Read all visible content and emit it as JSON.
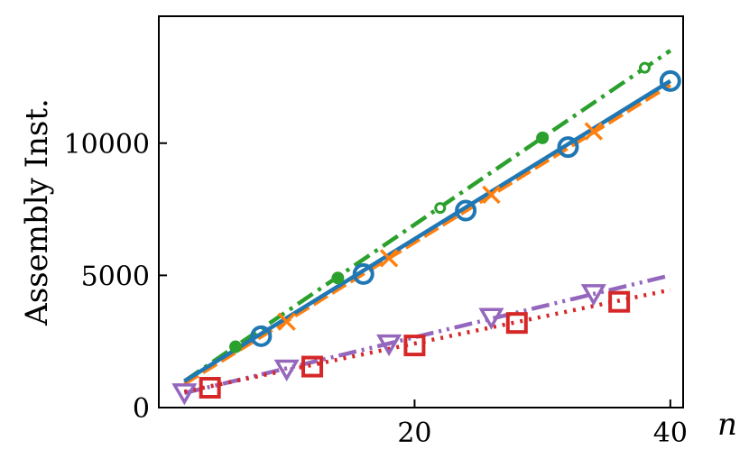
{
  "chart_data": {
    "type": "line",
    "xlabel": "n",
    "ylabel": "Assembly Inst.",
    "xlim": [
      0,
      41
    ],
    "ylim": [
      0,
      14800
    ],
    "xticks": [
      20,
      40
    ],
    "xtick_labels": [
      "20",
      "40"
    ],
    "yticks": [
      0,
      5000,
      10000
    ],
    "ytick_labels": [
      "0",
      "5000",
      "10000"
    ],
    "grid": false,
    "legend": "none",
    "series": [
      {
        "color": "#1f77b4",
        "dash": "solid",
        "marker": "circle",
        "x": [
          2,
          40
        ],
        "y": [
          1000,
          12350
        ],
        "markers": {
          "x": [
            8,
            16,
            24,
            32,
            40
          ],
          "y": [
            2700,
            5050,
            7450,
            9850,
            12350
          ]
        }
      },
      {
        "color": "#ff7f0e",
        "dash": "dashed",
        "marker": "x",
        "x": [
          2,
          40
        ],
        "y": [
          900,
          12200
        ],
        "markers": {
          "x": [
            10,
            18,
            26,
            34
          ],
          "y": [
            3250,
            5650,
            8050,
            10450
          ]
        }
      },
      {
        "color": "#2ca02c",
        "dash": "dashdot",
        "marker": "dot",
        "x": [
          2,
          40
        ],
        "y": [
          1000,
          13500
        ],
        "markers": {
          "x": [
            6,
            14,
            22,
            30,
            38
          ],
          "y": [
            2300,
            4900,
            7550,
            10200,
            12850
          ]
        },
        "hollow_markers_at": [
          22,
          38
        ]
      },
      {
        "color": "#d62728",
        "dash": "dotted",
        "marker": "square",
        "x": [
          2,
          40
        ],
        "y": [
          600,
          4450
        ],
        "markers": {
          "x": [
            4,
            12,
            20,
            28,
            36
          ],
          "y": [
            750,
            1550,
            2350,
            3200,
            4000
          ]
        }
      },
      {
        "color": "#9467bd",
        "dash": "dashdotdot",
        "marker": "triangle-down",
        "x": [
          2,
          40
        ],
        "y": [
          550,
          5000
        ],
        "markers": {
          "x": [
            2,
            10,
            18,
            26,
            34
          ],
          "y": [
            550,
            1450,
            2400,
            3400,
            4300
          ]
        }
      }
    ]
  }
}
